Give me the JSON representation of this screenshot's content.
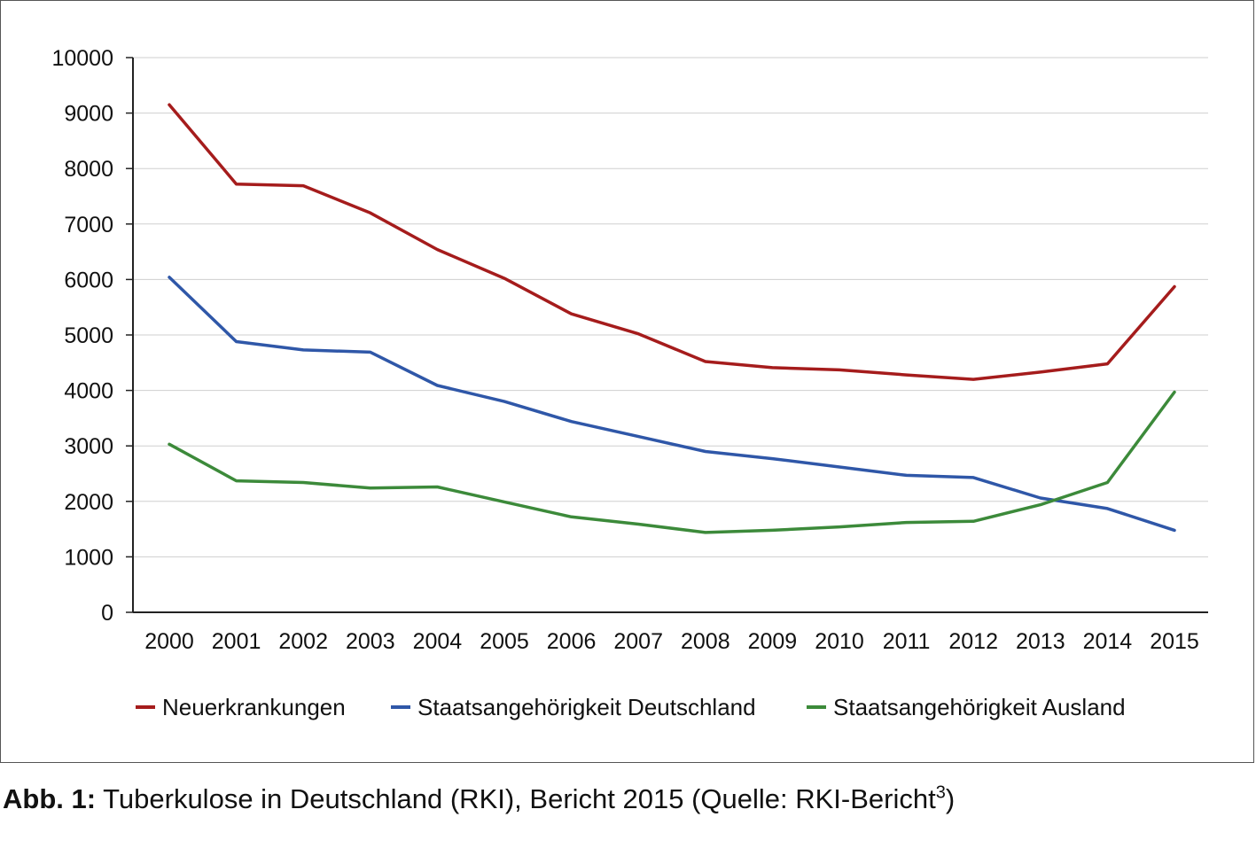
{
  "chart_data": {
    "type": "line",
    "x": [
      "2000",
      "2001",
      "2002",
      "2003",
      "2004",
      "2005",
      "2006",
      "2007",
      "2008",
      "2009",
      "2010",
      "2011",
      "2012",
      "2013",
      "2014",
      "2015"
    ],
    "ylim": [
      0,
      10000
    ],
    "yticks": [
      "0",
      "1000",
      "2000",
      "3000",
      "4000",
      "5000",
      "6000",
      "7000",
      "8000",
      "9000",
      "10000"
    ],
    "grid": true,
    "legend_position": "bottom",
    "series": [
      {
        "name": "Neuerkrankungen",
        "color": "#a51c1c",
        "values": [
          9150,
          7720,
          7690,
          7200,
          6540,
          6020,
          5380,
          5020,
          4520,
          4410,
          4370,
          4280,
          4200,
          4330,
          4480,
          5870
        ]
      },
      {
        "name": "Staatsangehörigkeit Deutschland",
        "color": "#2f57a8",
        "values": [
          6040,
          4880,
          4730,
          4690,
          4090,
          3800,
          3440,
          3170,
          2900,
          2770,
          2620,
          2470,
          2430,
          2060,
          1870,
          1480
        ]
      },
      {
        "name": "Staatsangehörigkeit Ausland",
        "color": "#3c8a3a",
        "values": [
          3030,
          2370,
          2340,
          2240,
          2260,
          1990,
          1720,
          1590,
          1440,
          1480,
          1540,
          1620,
          1640,
          1940,
          2340,
          3970
        ]
      }
    ]
  },
  "caption": {
    "label": "Abb. 1:",
    "text": " Tuberkulose in Deutschland (RKI), Bericht 2015 (Quelle: RKI-Bericht",
    "footnote": "3",
    "close": ")"
  }
}
